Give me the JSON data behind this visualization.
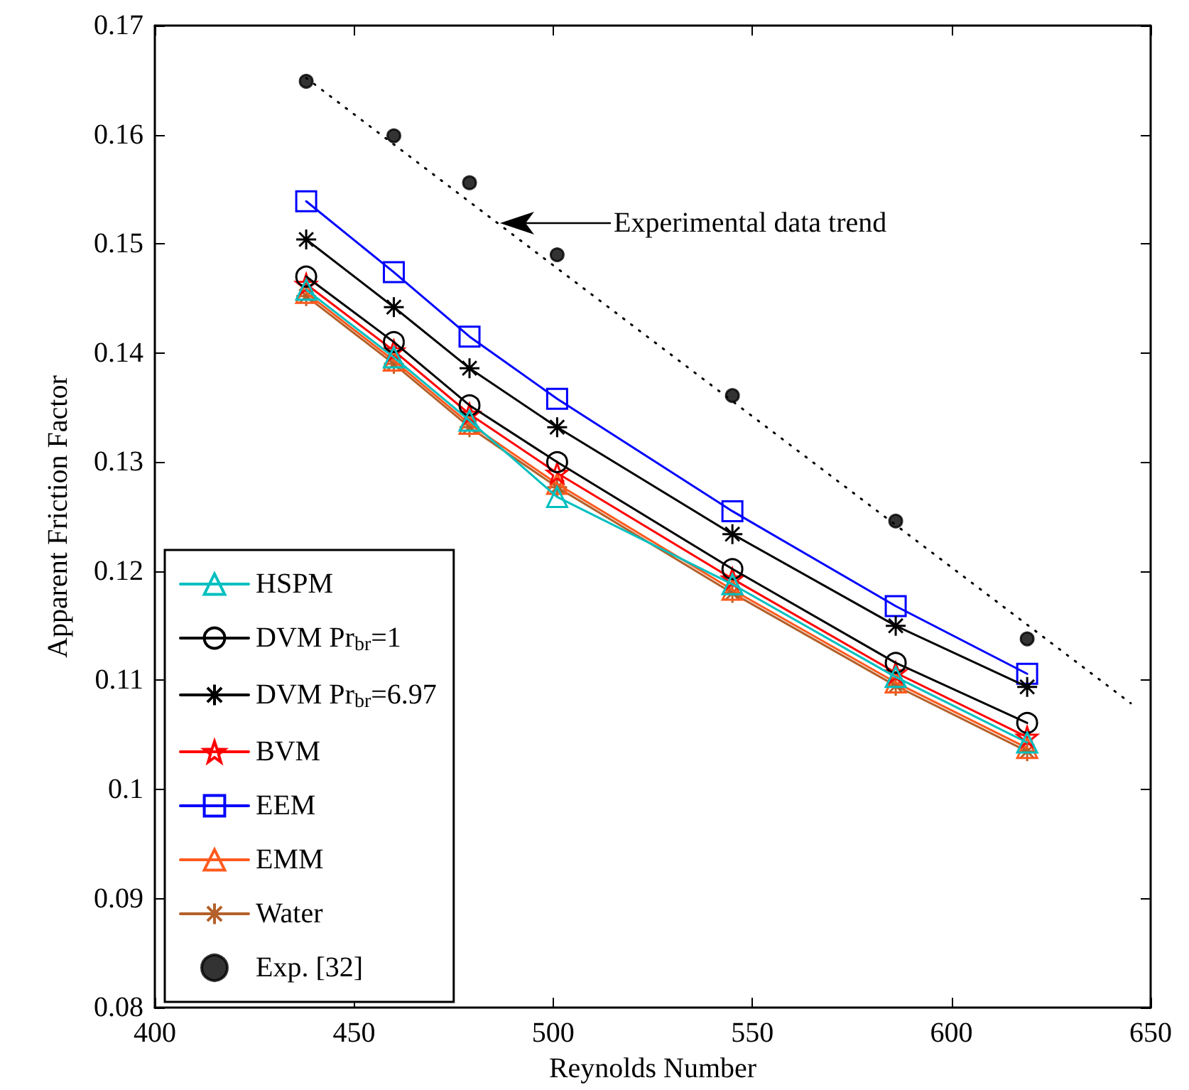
{
  "chart_data": {
    "type": "line",
    "xlabel": "Reynolds Number",
    "ylabel": "Apparent Friction Factor",
    "x": [
      438,
      460,
      479,
      501,
      545,
      586,
      619
    ],
    "xlim": [
      400,
      650
    ],
    "xticks": [
      400,
      450,
      500,
      550,
      600,
      650
    ],
    "ylim": [
      0.08,
      0.17
    ],
    "yticks": [
      0.08,
      0.09,
      0.1,
      0.11,
      0.12,
      0.13,
      0.14,
      0.15,
      0.16,
      0.17
    ],
    "grid": false,
    "legend": "bottom left",
    "line_style": "solid",
    "annotations": [
      "Experimental data trend"
    ],
    "series": [
      {
        "name": "HSPM",
        "color": "#00bfbf",
        "marker": "triangle",
        "values": [
          0.1458,
          0.1396,
          0.1338,
          0.1268,
          0.1188,
          0.1103,
          0.1043
        ]
      },
      {
        "name": "DVM Pr$_{br}$=1",
        "color": "#000000",
        "marker": "circle",
        "values": [
          0.147,
          0.141,
          0.1352,
          0.13,
          0.1202,
          0.1116,
          0.1061
        ]
      },
      {
        "name": "DVM Pr$_{br}$=6.97",
        "color": "#000000",
        "marker": "cross",
        "values": [
          0.1504,
          0.1442,
          0.1386,
          0.1332,
          0.1234,
          0.115,
          0.1094
        ]
      },
      {
        "name": "BVM",
        "color": "#ff0000",
        "marker": "star",
        "values": [
          0.1463,
          0.1402,
          0.1344,
          0.129,
          0.1193,
          0.1107,
          0.1048
        ]
      },
      {
        "name": "EEM",
        "color": "#0000ff",
        "marker": "square",
        "values": [
          0.1539,
          0.1474,
          0.1415,
          0.1358,
          0.1255,
          0.1168,
          0.1106
        ]
      },
      {
        "name": "EMM",
        "color": "#ff5a1e",
        "marker": "triangle",
        "values": [
          0.1455,
          0.1393,
          0.1335,
          0.128,
          0.1183,
          0.1098,
          0.1038
        ]
      },
      {
        "name": "Water",
        "color": "#b4602a",
        "marker": "cross",
        "values": [
          0.1452,
          0.139,
          0.1332,
          0.1277,
          0.118,
          0.1095,
          0.1035
        ]
      },
      {
        "name": "Exp. [32]",
        "type": "scatter",
        "color": "#000000",
        "marker": "circle",
        "values": [
          0.1649,
          0.1599,
          0.1556,
          0.149,
          0.1361,
          0.1246,
          0.1138
        ]
      },
      {
        "type": "line",
        "color": "#000000",
        "marker": "none",
        "line_style": "dotted",
        "x": [
          438,
          645
        ],
        "values": [
          0.1652,
          0.1079
        ]
      }
    ]
  }
}
